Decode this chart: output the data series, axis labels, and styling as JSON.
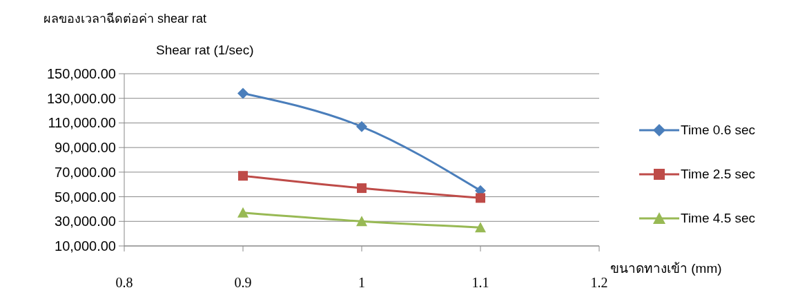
{
  "chart_data": {
    "type": "line",
    "title": "ผลของเวลาฉีดต่อค่า shear rat",
    "ylabel": "Shear rat (1/sec)",
    "xlabel": "ขนาดทางเข้า (mm)",
    "x": [
      0.9,
      1,
      1.1
    ],
    "series": [
      {
        "name": "Time 0.6 sec",
        "color": "#4a7ebb",
        "marker": "diamond",
        "values": [
          134000,
          107000,
          55000
        ]
      },
      {
        "name": "Time 2.5 sec",
        "color": "#be4b48",
        "marker": "square",
        "values": [
          67000,
          57000,
          49000
        ]
      },
      {
        "name": "Time 4.5 sec",
        "color": "#98b954",
        "marker": "triangle",
        "values": [
          37000,
          30000,
          25000
        ]
      }
    ],
    "xlim": [
      0.8,
      1.2
    ],
    "xticks": [
      0.8,
      0.9,
      1,
      1.1,
      1.2
    ],
    "ylim": [
      10000,
      150000
    ],
    "yticks": [
      {
        "value": 10000,
        "label": "10,000.00"
      },
      {
        "value": 30000,
        "label": "30,000.00"
      },
      {
        "value": 50000,
        "label": "50,000.00"
      },
      {
        "value": 70000,
        "label": "70,000.00"
      },
      {
        "value": 90000,
        "label": "90,000.00"
      },
      {
        "value": 110000,
        "label": "110,000.00"
      },
      {
        "value": 130000,
        "label": "130,000.00"
      },
      {
        "value": 150000,
        "label": "150,000.00"
      }
    ],
    "grid": "y",
    "legend": "right",
    "line_style": "solid"
  }
}
